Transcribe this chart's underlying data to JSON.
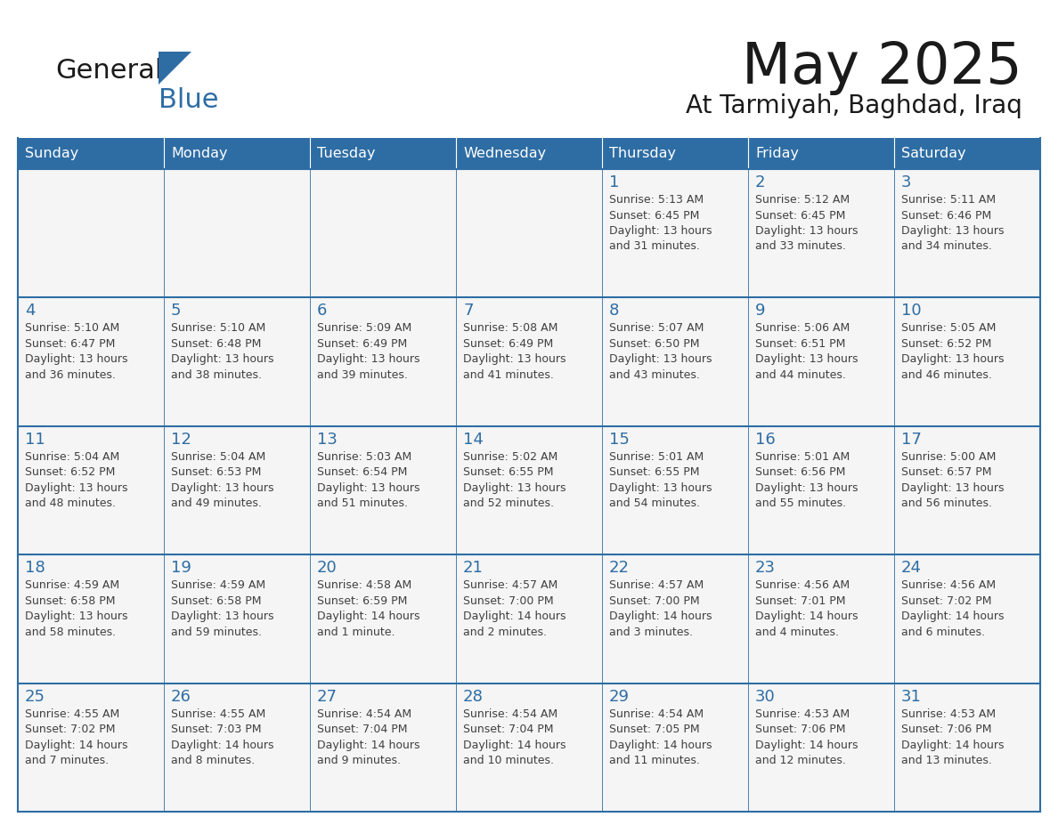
{
  "title": "May 2025",
  "subtitle": "At Tarmiyah, Baghdad, Iraq",
  "header_bg": "#2E6DA4",
  "header_text": "#FFFFFF",
  "cell_bg": "#F5F5F5",
  "day_number_color": "#2E6DA4",
  "cell_text_color": "#404040",
  "grid_line_color": "#2E6DA4",
  "logo_general_color": "#1a1a1a",
  "logo_blue_color": "#2E6DA4",
  "logo_triangle_color": "#2E6DA4",
  "days_of_week": [
    "Sunday",
    "Monday",
    "Tuesday",
    "Wednesday",
    "Thursday",
    "Friday",
    "Saturday"
  ],
  "weeks": [
    [
      {
        "day": null,
        "info": null
      },
      {
        "day": null,
        "info": null
      },
      {
        "day": null,
        "info": null
      },
      {
        "day": null,
        "info": null
      },
      {
        "day": 1,
        "info": "Sunrise: 5:13 AM\nSunset: 6:45 PM\nDaylight: 13 hours\nand 31 minutes."
      },
      {
        "day": 2,
        "info": "Sunrise: 5:12 AM\nSunset: 6:45 PM\nDaylight: 13 hours\nand 33 minutes."
      },
      {
        "day": 3,
        "info": "Sunrise: 5:11 AM\nSunset: 6:46 PM\nDaylight: 13 hours\nand 34 minutes."
      }
    ],
    [
      {
        "day": 4,
        "info": "Sunrise: 5:10 AM\nSunset: 6:47 PM\nDaylight: 13 hours\nand 36 minutes."
      },
      {
        "day": 5,
        "info": "Sunrise: 5:10 AM\nSunset: 6:48 PM\nDaylight: 13 hours\nand 38 minutes."
      },
      {
        "day": 6,
        "info": "Sunrise: 5:09 AM\nSunset: 6:49 PM\nDaylight: 13 hours\nand 39 minutes."
      },
      {
        "day": 7,
        "info": "Sunrise: 5:08 AM\nSunset: 6:49 PM\nDaylight: 13 hours\nand 41 minutes."
      },
      {
        "day": 8,
        "info": "Sunrise: 5:07 AM\nSunset: 6:50 PM\nDaylight: 13 hours\nand 43 minutes."
      },
      {
        "day": 9,
        "info": "Sunrise: 5:06 AM\nSunset: 6:51 PM\nDaylight: 13 hours\nand 44 minutes."
      },
      {
        "day": 10,
        "info": "Sunrise: 5:05 AM\nSunset: 6:52 PM\nDaylight: 13 hours\nand 46 minutes."
      }
    ],
    [
      {
        "day": 11,
        "info": "Sunrise: 5:04 AM\nSunset: 6:52 PM\nDaylight: 13 hours\nand 48 minutes."
      },
      {
        "day": 12,
        "info": "Sunrise: 5:04 AM\nSunset: 6:53 PM\nDaylight: 13 hours\nand 49 minutes."
      },
      {
        "day": 13,
        "info": "Sunrise: 5:03 AM\nSunset: 6:54 PM\nDaylight: 13 hours\nand 51 minutes."
      },
      {
        "day": 14,
        "info": "Sunrise: 5:02 AM\nSunset: 6:55 PM\nDaylight: 13 hours\nand 52 minutes."
      },
      {
        "day": 15,
        "info": "Sunrise: 5:01 AM\nSunset: 6:55 PM\nDaylight: 13 hours\nand 54 minutes."
      },
      {
        "day": 16,
        "info": "Sunrise: 5:01 AM\nSunset: 6:56 PM\nDaylight: 13 hours\nand 55 minutes."
      },
      {
        "day": 17,
        "info": "Sunrise: 5:00 AM\nSunset: 6:57 PM\nDaylight: 13 hours\nand 56 minutes."
      }
    ],
    [
      {
        "day": 18,
        "info": "Sunrise: 4:59 AM\nSunset: 6:58 PM\nDaylight: 13 hours\nand 58 minutes."
      },
      {
        "day": 19,
        "info": "Sunrise: 4:59 AM\nSunset: 6:58 PM\nDaylight: 13 hours\nand 59 minutes."
      },
      {
        "day": 20,
        "info": "Sunrise: 4:58 AM\nSunset: 6:59 PM\nDaylight: 14 hours\nand 1 minute."
      },
      {
        "day": 21,
        "info": "Sunrise: 4:57 AM\nSunset: 7:00 PM\nDaylight: 14 hours\nand 2 minutes."
      },
      {
        "day": 22,
        "info": "Sunrise: 4:57 AM\nSunset: 7:00 PM\nDaylight: 14 hours\nand 3 minutes."
      },
      {
        "day": 23,
        "info": "Sunrise: 4:56 AM\nSunset: 7:01 PM\nDaylight: 14 hours\nand 4 minutes."
      },
      {
        "day": 24,
        "info": "Sunrise: 4:56 AM\nSunset: 7:02 PM\nDaylight: 14 hours\nand 6 minutes."
      }
    ],
    [
      {
        "day": 25,
        "info": "Sunrise: 4:55 AM\nSunset: 7:02 PM\nDaylight: 14 hours\nand 7 minutes."
      },
      {
        "day": 26,
        "info": "Sunrise: 4:55 AM\nSunset: 7:03 PM\nDaylight: 14 hours\nand 8 minutes."
      },
      {
        "day": 27,
        "info": "Sunrise: 4:54 AM\nSunset: 7:04 PM\nDaylight: 14 hours\nand 9 minutes."
      },
      {
        "day": 28,
        "info": "Sunrise: 4:54 AM\nSunset: 7:04 PM\nDaylight: 14 hours\nand 10 minutes."
      },
      {
        "day": 29,
        "info": "Sunrise: 4:54 AM\nSunset: 7:05 PM\nDaylight: 14 hours\nand 11 minutes."
      },
      {
        "day": 30,
        "info": "Sunrise: 4:53 AM\nSunset: 7:06 PM\nDaylight: 14 hours\nand 12 minutes."
      },
      {
        "day": 31,
        "info": "Sunrise: 4:53 AM\nSunset: 7:06 PM\nDaylight: 14 hours\nand 13 minutes."
      }
    ]
  ]
}
